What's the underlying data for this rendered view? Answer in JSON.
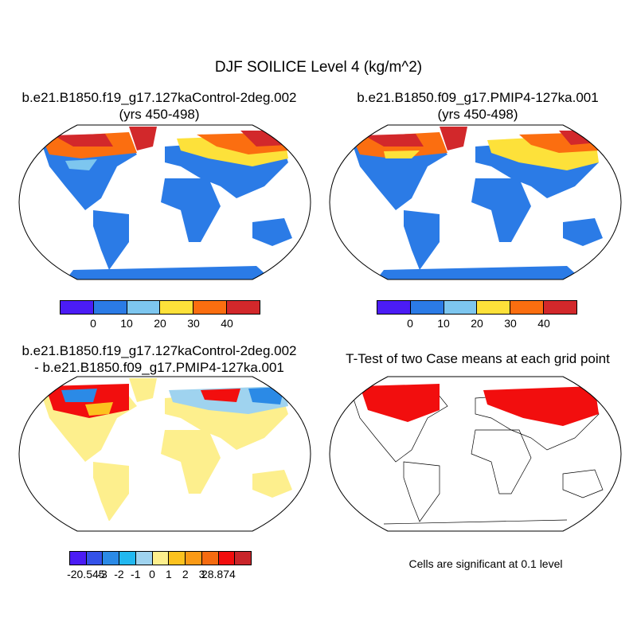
{
  "title": "DJF SOILICE Level 4 (kg/m^2)",
  "panels": {
    "case1": {
      "title_line1": "b.e21.B1850.f19_g17.127kaControl-2deg.002",
      "title_line2": "(yrs 450-498)",
      "colorbar": {
        "colors": [
          "#4b1cf5",
          "#2b7be6",
          "#7dc6ef",
          "#fde13a",
          "#fb6e10",
          "#d2282b"
        ],
        "labels": [
          "0",
          "10",
          "20",
          "30",
          "40"
        ]
      }
    },
    "case2": {
      "title_line1": "b.e21.B1850.f09_g17.PMIP4-127ka.001",
      "title_line2": "(yrs 450-498)",
      "colorbar": {
        "colors": [
          "#4b1cf5",
          "#2b7be6",
          "#7dc6ef",
          "#fde13a",
          "#fb6e10",
          "#d2282b"
        ],
        "labels": [
          "0",
          "10",
          "20",
          "30",
          "40"
        ]
      }
    },
    "difference": {
      "title_line1": "b.e21.B1850.f19_g17.127kaControl-2deg.002",
      "title_line2": "- b.e21.B1850.f09_g17.PMIP4-127ka.001",
      "colorbar": {
        "colors": [
          "#4b1cf5",
          "#3452e9",
          "#2b8ae6",
          "#22b8f0",
          "#9fd3ef",
          "#fdef8d",
          "#fcc21f",
          "#fa9a16",
          "#f56b10",
          "#f20e0e",
          "#c9252a"
        ],
        "labels": [
          "-20.545",
          "-3",
          "-2",
          "-1",
          "0",
          "1",
          "2",
          "3",
          "28.874"
        ]
      }
    },
    "ttest": {
      "title_line1": "T-Test of two Case means at each grid point",
      "footnote": "Cells are significant at 0.1 level"
    }
  }
}
